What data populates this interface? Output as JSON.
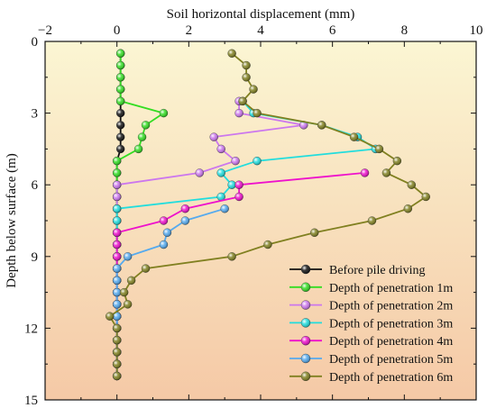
{
  "chart_data": {
    "type": "line",
    "xlabel": "Soil horizontal displacement (mm)",
    "ylabel": "Depth below surface (m)",
    "xlim": [
      -2,
      10
    ],
    "ylim": [
      15,
      0
    ],
    "x_ticks": [
      "−2",
      "0",
      "2",
      "4",
      "6",
      "8",
      "10"
    ],
    "y_ticks": [
      "0",
      "3",
      "6",
      "9",
      "12",
      "15"
    ],
    "x_axis_position": "top",
    "y_axis_inverted": true,
    "grid": false,
    "legend_position": "bottom-right",
    "background": "vertical gradient from light yellow (top) to peach (bottom)",
    "series": [
      {
        "name": "Before pile driving",
        "color": "#111111",
        "points": [
          [
            0.1,
            0.5
          ],
          [
            0.1,
            1.0
          ],
          [
            0.1,
            1.5
          ],
          [
            0.1,
            2.0
          ],
          [
            0.1,
            2.5
          ],
          [
            0.1,
            3.0
          ],
          [
            0.1,
            3.5
          ],
          [
            0.1,
            4.0
          ],
          [
            0.1,
            4.5
          ],
          [
            0.0,
            5.0
          ],
          [
            0.0,
            5.5
          ],
          [
            0.0,
            6.0
          ],
          [
            0.0,
            6.5
          ],
          [
            0.0,
            7.0
          ],
          [
            0.0,
            7.5
          ],
          [
            0.0,
            8.0
          ],
          [
            0.0,
            8.5
          ],
          [
            0.0,
            9.0
          ],
          [
            0.0,
            9.5
          ],
          [
            0.0,
            10.0
          ],
          [
            0.0,
            10.5
          ],
          [
            0.0,
            11.0
          ],
          [
            0.0,
            11.5
          ],
          [
            0.0,
            12.0
          ],
          [
            0.0,
            12.5
          ],
          [
            0.0,
            13.0
          ],
          [
            0.0,
            13.5
          ],
          [
            0.0,
            14.0
          ]
        ]
      },
      {
        "name": "Depth of penetration 1m",
        "color": "#33dd22",
        "points": [
          [
            0.1,
            0.5
          ],
          [
            0.1,
            1.0
          ],
          [
            0.1,
            1.5
          ],
          [
            0.1,
            2.0
          ],
          [
            0.1,
            2.5
          ],
          [
            1.3,
            3.0
          ],
          [
            0.8,
            3.5
          ],
          [
            0.7,
            4.0
          ],
          [
            0.6,
            4.5
          ],
          [
            0.0,
            5.0
          ],
          [
            0.0,
            5.5
          ],
          [
            0.0,
            6.0
          ],
          [
            0.0,
            6.5
          ],
          [
            0.0,
            7.0
          ],
          [
            0.0,
            7.5
          ],
          [
            0.0,
            8.0
          ],
          [
            0.0,
            8.5
          ],
          [
            0.0,
            9.0
          ],
          [
            0.0,
            9.5
          ],
          [
            0.0,
            10.0
          ],
          [
            0.0,
            10.5
          ],
          [
            0.0,
            11.0
          ],
          [
            0.0,
            11.5
          ],
          [
            0.0,
            12.0
          ],
          [
            0.0,
            12.5
          ],
          [
            0.0,
            13.0
          ],
          [
            0.0,
            13.5
          ],
          [
            0.0,
            14.0
          ]
        ]
      },
      {
        "name": "Depth of penetration 2m",
        "color": "#cc77ee",
        "points": [
          [
            3.4,
            2.5
          ],
          [
            3.4,
            3.0
          ],
          [
            5.2,
            3.5
          ],
          [
            2.7,
            4.0
          ],
          [
            2.9,
            4.5
          ],
          [
            3.3,
            5.0
          ],
          [
            2.3,
            5.5
          ],
          [
            0.0,
            6.0
          ],
          [
            0.0,
            6.5
          ],
          [
            0.0,
            7.0
          ],
          [
            0.0,
            7.5
          ],
          [
            0.0,
            8.0
          ],
          [
            0.0,
            8.5
          ],
          [
            0.0,
            9.0
          ],
          [
            0.0,
            9.5
          ],
          [
            0.0,
            10.0
          ],
          [
            0.0,
            10.5
          ],
          [
            0.0,
            11.0
          ],
          [
            0.0,
            11.5
          ],
          [
            0.0,
            12.0
          ],
          [
            0.0,
            12.5
          ],
          [
            0.0,
            13.0
          ],
          [
            0.0,
            13.5
          ],
          [
            0.0,
            14.0
          ]
        ]
      },
      {
        "name": "Depth of penetration 3m",
        "color": "#22dddd",
        "points": [
          [
            3.5,
            2.5
          ],
          [
            3.8,
            3.0
          ],
          [
            5.7,
            3.5
          ],
          [
            6.7,
            4.0
          ],
          [
            7.2,
            4.5
          ],
          [
            3.9,
            5.0
          ],
          [
            2.9,
            5.5
          ],
          [
            3.2,
            6.0
          ],
          [
            2.9,
            6.5
          ],
          [
            0.0,
            7.0
          ],
          [
            0.0,
            7.5
          ],
          [
            0.0,
            8.0
          ],
          [
            0.0,
            8.5
          ],
          [
            0.0,
            9.0
          ],
          [
            0.0,
            9.5
          ],
          [
            0.0,
            10.0
          ],
          [
            0.0,
            10.5
          ],
          [
            0.0,
            11.0
          ],
          [
            0.0,
            11.5
          ],
          [
            0.0,
            12.0
          ],
          [
            0.0,
            12.5
          ],
          [
            0.0,
            13.0
          ],
          [
            0.0,
            13.5
          ],
          [
            0.0,
            14.0
          ]
        ]
      },
      {
        "name": "Depth of penetration 4m",
        "color": "#ee11cc",
        "points": [
          [
            6.9,
            5.5
          ],
          [
            3.4,
            6.0
          ],
          [
            3.4,
            6.5
          ],
          [
            1.9,
            7.0
          ],
          [
            1.3,
            7.5
          ],
          [
            0.0,
            8.0
          ],
          [
            0.0,
            8.5
          ],
          [
            0.0,
            9.0
          ],
          [
            0.0,
            9.5
          ],
          [
            0.0,
            10.0
          ],
          [
            0.0,
            10.5
          ],
          [
            0.0,
            11.0
          ],
          [
            0.0,
            11.5
          ],
          [
            0.0,
            12.0
          ],
          [
            0.0,
            12.5
          ],
          [
            0.0,
            13.0
          ],
          [
            0.0,
            13.5
          ],
          [
            0.0,
            14.0
          ]
        ]
      },
      {
        "name": "Depth of penetration 5m",
        "color": "#55aaee",
        "points": [
          [
            3.0,
            7.0
          ],
          [
            1.9,
            7.5
          ],
          [
            1.4,
            8.0
          ],
          [
            1.3,
            8.5
          ],
          [
            0.3,
            9.0
          ],
          [
            0.0,
            9.5
          ],
          [
            0.0,
            10.0
          ],
          [
            0.0,
            10.5
          ],
          [
            0.0,
            11.0
          ],
          [
            0.0,
            11.5
          ],
          [
            0.0,
            12.0
          ],
          [
            0.0,
            12.5
          ],
          [
            0.0,
            13.0
          ],
          [
            0.0,
            13.5
          ],
          [
            0.0,
            14.0
          ]
        ]
      },
      {
        "name": "Depth of penetration 6m",
        "color": "#808020",
        "points": [
          [
            3.2,
            0.5
          ],
          [
            3.6,
            1.0
          ],
          [
            3.6,
            1.5
          ],
          [
            3.8,
            2.0
          ],
          [
            3.5,
            2.5
          ],
          [
            3.9,
            3.0
          ],
          [
            5.7,
            3.5
          ],
          [
            6.6,
            4.0
          ],
          [
            7.3,
            4.5
          ],
          [
            7.8,
            5.0
          ],
          [
            7.5,
            5.5
          ],
          [
            8.2,
            6.0
          ],
          [
            8.6,
            6.5
          ],
          [
            8.1,
            7.0
          ],
          [
            7.1,
            7.5
          ],
          [
            5.5,
            8.0
          ],
          [
            4.2,
            8.5
          ],
          [
            3.2,
            9.0
          ],
          [
            0.8,
            9.5
          ],
          [
            0.4,
            10.0
          ],
          [
            0.2,
            10.5
          ],
          [
            0.3,
            11.0
          ],
          [
            -0.2,
            11.5
          ],
          [
            0.0,
            12.0
          ],
          [
            0.0,
            12.5
          ],
          [
            0.0,
            13.0
          ],
          [
            0.0,
            13.5
          ],
          [
            0.0,
            14.0
          ]
        ]
      }
    ]
  }
}
